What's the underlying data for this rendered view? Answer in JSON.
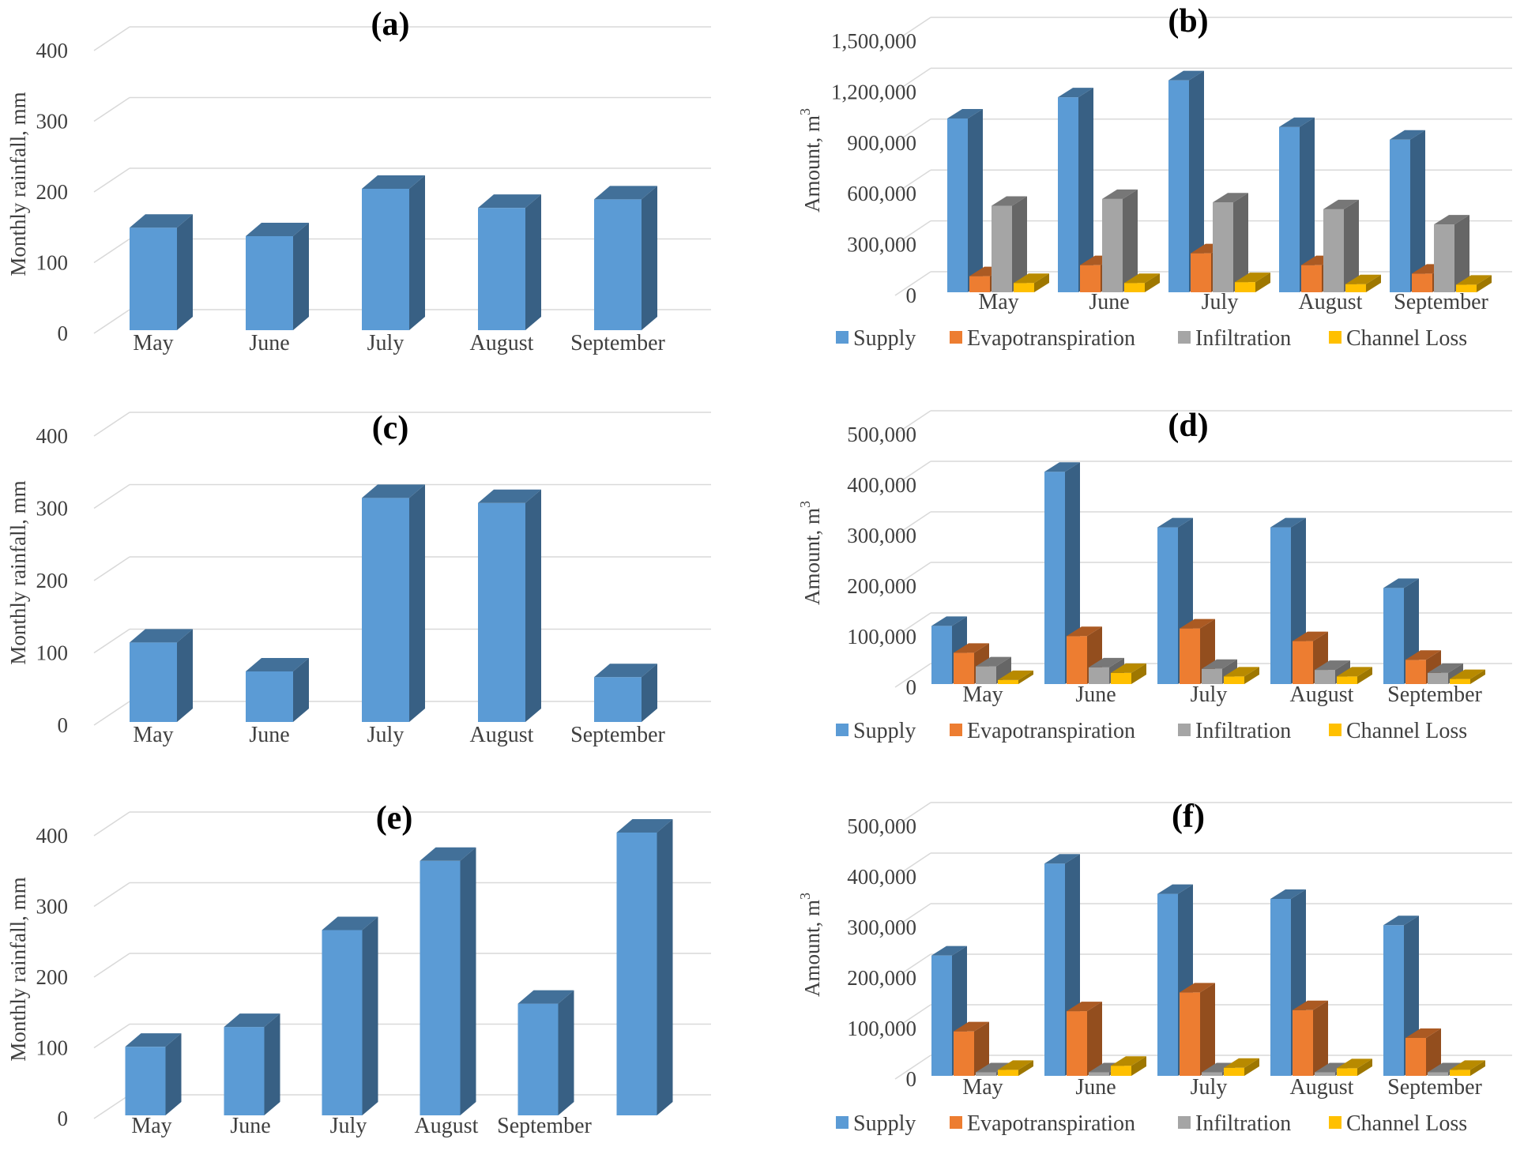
{
  "colors": {
    "supply": "#5B9BD5",
    "evapotranspiration": "#ED7D31",
    "infiltration": "#A5A5A5",
    "channel_loss": "#FFC000",
    "grid": "#D9D9D9",
    "text": "#404040"
  },
  "chart_data": [
    {
      "id": "a",
      "type": "bar",
      "title": "(a)",
      "xlabel": "",
      "ylabel": "Monthly rainfall, mm",
      "ylim": [
        0,
        400
      ],
      "yticks": [
        "0",
        "100",
        "200",
        "300",
        "400"
      ],
      "categories": [
        "May",
        "June",
        "July",
        "August",
        "September"
      ],
      "series": [
        {
          "key": "rain",
          "values": [
            145,
            133,
            200,
            173,
            185
          ]
        }
      ],
      "grid": true,
      "legend": null
    },
    {
      "id": "b",
      "type": "bar",
      "title": "(b)",
      "xlabel": "",
      "ylabel": "Amount, m",
      "ylabel_sup": "3",
      "ylim": [
        0,
        1500000
      ],
      "yticks": [
        "0",
        "300,000",
        "600,000",
        "900,000",
        "1,200,000",
        "1,500,000"
      ],
      "categories": [
        "May",
        "June",
        "July",
        "August",
        "September"
      ],
      "series": [
        {
          "key": "supply",
          "name": "Supply",
          "values": [
            1025000,
            1150000,
            1250000,
            975000,
            900000
          ]
        },
        {
          "key": "evapotranspiration",
          "name": "Evapotranspiration",
          "values": [
            95000,
            160000,
            230000,
            160000,
            110000
          ]
        },
        {
          "key": "infiltration",
          "name": "Infiltration",
          "values": [
            510000,
            550000,
            530000,
            490000,
            400000
          ]
        },
        {
          "key": "channel_loss",
          "name": "Channel Loss",
          "values": [
            55000,
            55000,
            60000,
            48000,
            45000
          ]
        }
      ],
      "grid": true,
      "legend": "bottom"
    },
    {
      "id": "c",
      "type": "bar",
      "title": "(c)",
      "xlabel": "",
      "ylabel": "Monthly rainfall, mm",
      "ylim": [
        0,
        400
      ],
      "yticks": [
        "0",
        "100",
        "200",
        "300",
        "400"
      ],
      "categories": [
        "May",
        "June",
        "July",
        "August",
        "September"
      ],
      "series": [
        {
          "key": "rain",
          "values": [
            110,
            70,
            310,
            303,
            62
          ]
        }
      ],
      "grid": true,
      "legend": null
    },
    {
      "id": "d",
      "type": "bar",
      "title": "(d)",
      "xlabel": "",
      "ylabel": "Amount, m",
      "ylabel_sup": "3",
      "ylim": [
        0,
        500000
      ],
      "yticks": [
        "0",
        "100,000",
        "200,000",
        "300,000",
        "400,000",
        "500,000"
      ],
      "categories": [
        "May",
        "June",
        "July",
        "August",
        "September"
      ],
      "series": [
        {
          "key": "supply",
          "name": "Supply",
          "values": [
            115000,
            420000,
            310000,
            310000,
            190000
          ]
        },
        {
          "key": "evapotranspiration",
          "name": "Evapotranspiration",
          "values": [
            62000,
            95000,
            110000,
            85000,
            48000
          ]
        },
        {
          "key": "infiltration",
          "name": "Infiltration",
          "values": [
            35000,
            33000,
            30000,
            28000,
            22000
          ]
        },
        {
          "key": "channel_loss",
          "name": "Channel Loss",
          "values": [
            8000,
            22000,
            15000,
            15000,
            10000
          ]
        }
      ],
      "grid": true,
      "legend": "bottom"
    },
    {
      "id": "e",
      "type": "bar",
      "title": "(e)",
      "xlabel": "",
      "ylabel": "Monthly rainfall, mm",
      "ylim": [
        0,
        400
      ],
      "yticks": [
        "0",
        "100",
        "200",
        "300",
        "400"
      ],
      "categories": [
        "May",
        "June",
        "July",
        "August",
        "September",
        ""
      ],
      "series": [
        {
          "key": "rain",
          "values": [
            97,
            125,
            262,
            360,
            158,
            400
          ]
        }
      ],
      "grid": true,
      "legend": null
    },
    {
      "id": "f",
      "type": "bar",
      "title": "(f)",
      "xlabel": "",
      "ylabel": "Amount, m",
      "ylabel_sup": "3",
      "ylim": [
        0,
        500000
      ],
      "yticks": [
        "0",
        "100,000",
        "200,000",
        "300,000",
        "400,000",
        "500,000"
      ],
      "categories": [
        "May",
        "June",
        "July",
        "August",
        "September"
      ],
      "series": [
        {
          "key": "supply",
          "name": "Supply",
          "values": [
            238000,
            420000,
            360000,
            350000,
            298000
          ]
        },
        {
          "key": "evapotranspiration",
          "name": "Evapotranspiration",
          "values": [
            88000,
            128000,
            165000,
            130000,
            75000
          ]
        },
        {
          "key": "infiltration",
          "name": "Infiltration",
          "values": [
            7000,
            7000,
            7000,
            7000,
            7000
          ]
        },
        {
          "key": "channel_loss",
          "name": "Channel Loss",
          "values": [
            12000,
            20000,
            16000,
            15000,
            12000
          ]
        }
      ],
      "grid": true,
      "legend": "bottom"
    }
  ]
}
